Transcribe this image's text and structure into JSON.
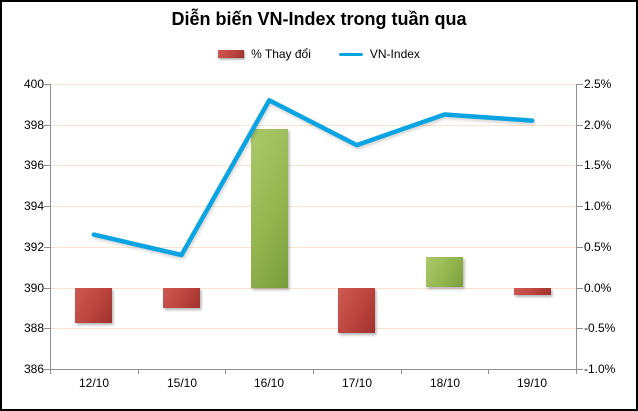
{
  "chart_data": {
    "type": "combo",
    "title": "Diễn biến VN-Index trong tuần qua",
    "categories": [
      "12/10",
      "15/10",
      "16/10",
      "17/10",
      "18/10",
      "19/10"
    ],
    "series": [
      {
        "name": "% Thay đổi",
        "type": "bar",
        "axis": "right",
        "unit": "%",
        "values": [
          -0.43,
          -0.25,
          1.95,
          -0.55,
          0.37,
          -0.09
        ]
      },
      {
        "name": "VN-Index",
        "type": "line",
        "axis": "left",
        "values": [
          392.6,
          391.6,
          399.2,
          397.0,
          398.5,
          398.2
        ]
      }
    ],
    "left_axis": {
      "min": 386,
      "max": 400,
      "step": 2,
      "tick_labels": [
        "400",
        "398",
        "396",
        "394",
        "392",
        "390",
        "388",
        "386"
      ]
    },
    "right_axis": {
      "min": -1.0,
      "max": 2.5,
      "step": 0.5,
      "tick_labels": [
        "2.5%",
        "2.0%",
        "1.5%",
        "1.0%",
        "0.5%",
        "0.0%",
        "-0.5%",
        "-1.0%"
      ]
    },
    "grid": true,
    "legend_position": "top-center"
  },
  "colors": {
    "bar_negative_light": "#cd5b52",
    "bar_negative_base": "#bb443f",
    "bar_negative_dark": "#9f322e",
    "bar_positive_light": "#adc96c",
    "bar_positive_base": "#94b550",
    "bar_positive_dark": "#7b9c3d",
    "line": "#0ba4e2",
    "gridline": "#fae3d0",
    "axis": "#919191",
    "text": "#000000",
    "background": "#ffffff",
    "frame_border": "#000000"
  }
}
